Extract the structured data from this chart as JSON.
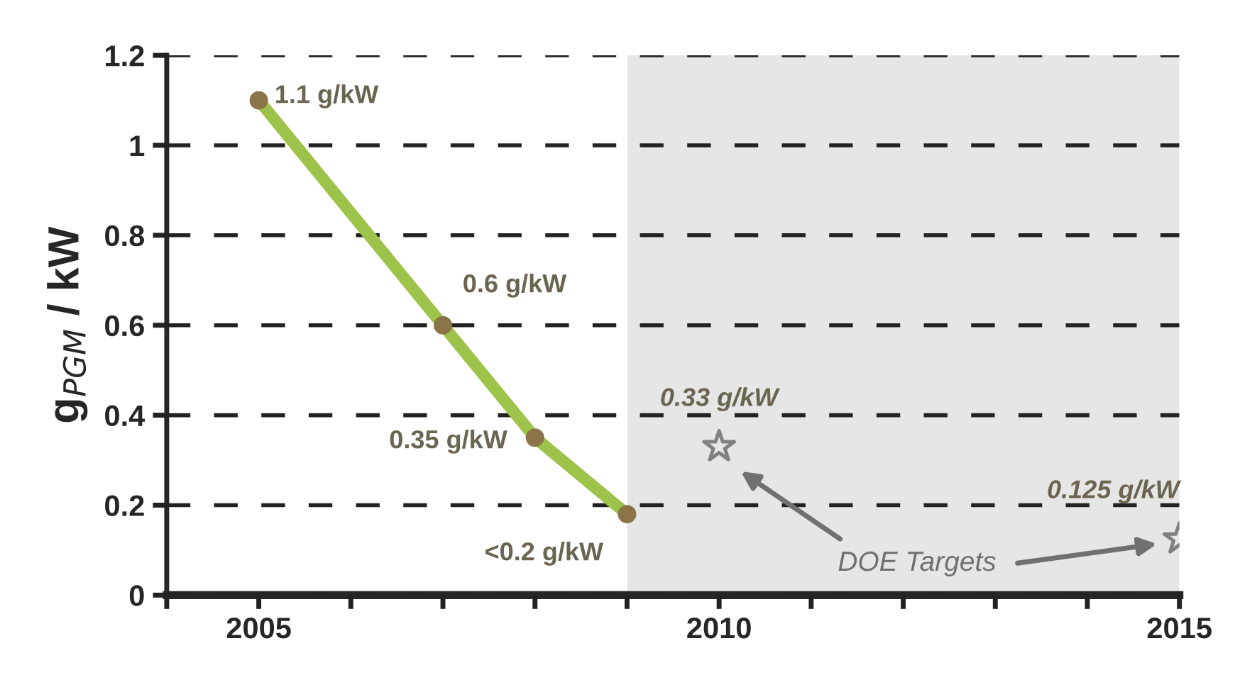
{
  "chart_data": {
    "type": "line",
    "ylabel": "g$_{PGM}$ / kW",
    "series": [
      {
        "color": "#9dc34a",
        "colors": [
          "#8b7447",
          "#8b7447",
          "#8b7447",
          "#8b7447"
        ],
        "marker": "circle",
        "x": [
          2005,
          2007,
          2008,
          2009
        ],
        "values": [
          1.1,
          0.6,
          0.35,
          0.18
        ],
        "value_labels": [
          "1.1 g/kW",
          "0.6 g/kW",
          "0.35 g/kW",
          "<0.2 g/kW"
        ]
      },
      {
        "type": "scatter",
        "color": "#808080",
        "marker": "star",
        "x": [
          2010,
          2015
        ],
        "values": [
          0.33,
          0.125
        ],
        "value_labels": [
          "0.33 g/kW",
          "0.125 g/kW"
        ]
      }
    ],
    "annotations": [
      "DOE Targets"
    ],
    "bands": [
      {
        "axis": "x",
        "from": 2009,
        "to": 2015,
        "color": "#e6e6e6"
      }
    ],
    "xlim": [
      2004,
      2015
    ],
    "xticks": [
      {
        "value": 2004,
        "label": null
      },
      2005,
      {
        "value": 2006,
        "label": null
      },
      {
        "value": 2007,
        "label": null
      },
      {
        "value": 2008,
        "label": null
      },
      {
        "value": 2009,
        "label": null
      },
      2010,
      {
        "value": 2011,
        "label": null
      },
      {
        "value": 2012,
        "label": null
      },
      {
        "value": 2013,
        "label": null
      },
      {
        "value": 2014,
        "label": null
      },
      2015
    ],
    "ylim": [
      0,
      1.2
    ],
    "yticks": [
      0,
      0.2,
      0.4,
      0.6,
      0.8,
      1,
      1.2
    ],
    "grid": "y"
  }
}
